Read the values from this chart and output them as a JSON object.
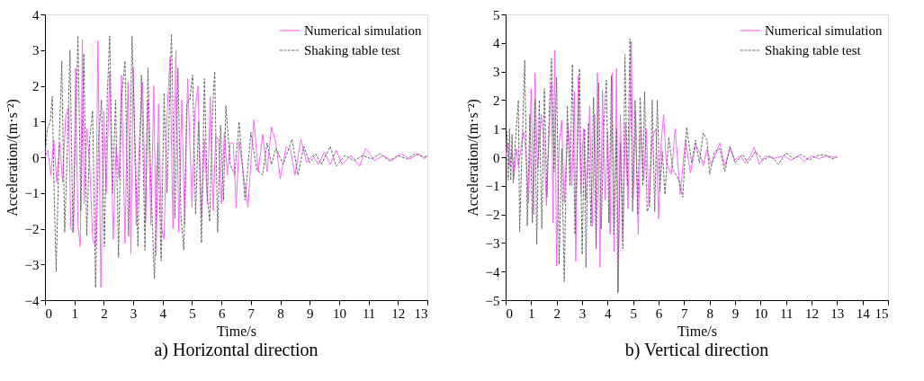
{
  "chart_data": [
    {
      "type": "line",
      "title": "a) Horizontal direction",
      "xlabel": "Time/s",
      "ylabel": "Acceleration/(m·s⁻²)",
      "xlim": [
        0,
        13
      ],
      "xticks": [
        0,
        1,
        2,
        3,
        4,
        5,
        6,
        7,
        8,
        9,
        10,
        11,
        12,
        13
      ],
      "ylim": [
        -4,
        4
      ],
      "yticks": [
        -4,
        -3,
        -2,
        -1,
        0,
        1,
        2,
        3,
        4
      ],
      "grid": false,
      "legend": "top right",
      "marker": "none",
      "series": [
        {
          "name": "Numerical simulation",
          "color": "#ff66ff",
          "line_style": "solid",
          "x": [
            0,
            0.1,
            0.2,
            0.3,
            0.4,
            0.5,
            0.6,
            0.7,
            0.8,
            0.88,
            0.97,
            1.04,
            1.12,
            1.2,
            1.27,
            1.33,
            1.42,
            1.52,
            1.62,
            1.72,
            1.8,
            1.9,
            2.0,
            2.08,
            2.2,
            2.32,
            2.42,
            2.52,
            2.6,
            2.72,
            2.82,
            2.92,
            3.0,
            3.1,
            3.22,
            3.32,
            3.42,
            3.5,
            3.6,
            3.7,
            3.78,
            3.86,
            3.96,
            4.05,
            4.15,
            4.25,
            4.35,
            4.45,
            4.55,
            4.65,
            4.75,
            4.85,
            5.0,
            5.1,
            5.2,
            5.32,
            5.42,
            5.52,
            5.62,
            5.72,
            5.8,
            5.9,
            6.0,
            6.1,
            6.2,
            6.3,
            6.4,
            6.5,
            6.6,
            6.75,
            6.9,
            7.1,
            7.25,
            7.4,
            7.55,
            7.7,
            7.85,
            8.0,
            8.2,
            8.35,
            8.5,
            8.7,
            8.9,
            9.1,
            9.3,
            9.5,
            9.7,
            9.9,
            10.1,
            10.4,
            10.7,
            10.9,
            11.2,
            11.5,
            11.8,
            12.1,
            12.4,
            12.7,
            12.9,
            13.0
          ],
          "values": [
            0,
            0.2,
            -0.5,
            0.5,
            -0.7,
            0.4,
            -0.7,
            1.1,
            1.4,
            -2.0,
            -2.1,
            2.5,
            -1.9,
            -2.5,
            3.3,
            -1.3,
            0.8,
            -0.2,
            -2.3,
            -2.5,
            3.25,
            -3.65,
            1.3,
            -1.0,
            2.4,
            -2.3,
            0.3,
            -0.6,
            2.3,
            -2.4,
            2.1,
            -2.7,
            2.5,
            -1.9,
            0.6,
            2.1,
            -1.8,
            1.6,
            -1.9,
            2.0,
            -2.75,
            1.5,
            -2.0,
            -2.3,
            1.2,
            2.8,
            -2.0,
            3.0,
            -2.1,
            1.6,
            -1.9,
            2.2,
            -1.4,
            1.3,
            2.0,
            -1.7,
            0.5,
            -1.3,
            1.7,
            -1.5,
            0.6,
            0.5,
            -1.3,
            0.7,
            -0.5,
            0.4,
            0.4,
            -1.4,
            0.45,
            -0.5,
            -1.4,
            1.05,
            -0.4,
            0.65,
            -0.4,
            0.85,
            0.4,
            -0.6,
            0.3,
            0.2,
            -0.5,
            0.5,
            -0.15,
            0.05,
            -0.2,
            0.15,
            -0.2,
            0.2,
            -0.2,
            0.05,
            -0.25,
            0.25,
            -0.1,
            0.05,
            -0.1,
            0.1,
            -0.05,
            0.1,
            -0.05,
            0.05
          ]
        },
        {
          "name": "Shaking table test",
          "color": "#666666",
          "line_style": "dashed",
          "x": [
            0,
            0.08,
            0.18,
            0.25,
            0.3,
            0.38,
            0.48,
            0.57,
            0.67,
            0.77,
            0.85,
            0.95,
            1.05,
            1.12,
            1.22,
            1.32,
            1.42,
            1.52,
            1.62,
            1.72,
            1.82,
            1.92,
            2.02,
            2.12,
            2.2,
            2.3,
            2.4,
            2.5,
            2.6,
            2.72,
            2.84,
            2.96,
            3.06,
            3.16,
            3.28,
            3.4,
            3.5,
            3.6,
            3.72,
            3.84,
            3.95,
            4.05,
            4.15,
            4.3,
            4.42,
            4.52,
            4.62,
            4.72,
            4.82,
            4.92,
            5.02,
            5.12,
            5.22,
            5.32,
            5.42,
            5.52,
            5.6,
            5.7,
            5.77,
            5.87,
            5.97,
            6.07,
            6.15,
            6.3,
            6.45,
            6.6,
            6.8,
            7.0,
            7.2,
            7.4,
            7.55,
            7.7,
            7.85,
            8.1,
            8.4,
            8.6,
            8.8,
            9.0,
            9.2,
            9.4,
            9.7,
            9.9,
            10.2,
            10.5,
            10.8,
            11.1,
            11.4,
            11.7,
            12.0,
            12.3,
            12.6,
            12.9,
            13.0
          ],
          "values": [
            0,
            0.8,
            1.0,
            1.7,
            -0.6,
            -3.2,
            0.3,
            2.7,
            -2.1,
            0.5,
            3.0,
            -2.1,
            1.0,
            3.4,
            -1.5,
            2.9,
            -2.2,
            0.5,
            1.3,
            -3.65,
            0.5,
            1.6,
            -2.5,
            1.8,
            3.4,
            -1.0,
            1.6,
            -2.8,
            1.6,
            2.7,
            -2.2,
            3.4,
            0.5,
            -2.5,
            2.3,
            -2.6,
            2.5,
            -0.7,
            -3.4,
            0.4,
            -2.9,
            1.8,
            -1.0,
            3.45,
            -1.7,
            2.5,
            -1.6,
            -2.6,
            1.5,
            1.6,
            2.3,
            -1.6,
            1.0,
            -2.4,
            2.2,
            -1.1,
            -1.8,
            1.3,
            2.4,
            -2.1,
            0.9,
            -1.2,
            1.45,
            -0.2,
            -0.5,
            1.0,
            -1.2,
            0.7,
            -0.35,
            -0.5,
            0.4,
            -0.2,
            0.25,
            -0.2,
            0.5,
            -0.5,
            0.3,
            -0.15,
            0.1,
            -0.2,
            0.3,
            -0.25,
            0.05,
            -0.1,
            0.05,
            -0.05,
            0.1,
            -0.1,
            0.05,
            -0.05,
            0.1,
            0.0,
            0.05
          ]
        }
      ]
    },
    {
      "type": "line",
      "title": "b) Vertical direction",
      "xlabel": "Time/s",
      "ylabel": "Acceleration/(m·s⁻²)",
      "xlim": [
        0,
        15
      ],
      "xticks": [
        0,
        1,
        2,
        3,
        4,
        5,
        6,
        7,
        8,
        9,
        10,
        11,
        12,
        13,
        14,
        15
      ],
      "ylim": [
        -5,
        5
      ],
      "yticks": [
        -5,
        -4,
        -3,
        -2,
        -1,
        0,
        1,
        2,
        3,
        4,
        5
      ],
      "grid": false,
      "legend": "top right",
      "marker": "none",
      "series": [
        {
          "name": "Numerical simulation",
          "color": "#ff66ff",
          "line_style": "solid",
          "x": [
            0,
            0.08,
            0.15,
            0.25,
            0.33,
            0.42,
            0.5,
            0.6,
            0.7,
            0.8,
            0.9,
            1.0,
            1.1,
            1.15,
            1.25,
            1.4,
            1.5,
            1.6,
            1.7,
            1.8,
            1.86,
            1.92,
            2.0,
            2.1,
            2.2,
            2.3,
            2.45,
            2.6,
            2.7,
            2.75,
            2.85,
            2.95,
            3.05,
            3.15,
            3.3,
            3.4,
            3.5,
            3.55,
            3.6,
            3.7,
            3.8,
            3.9,
            4.0,
            4.1,
            4.18,
            4.25,
            4.35,
            4.42,
            4.5,
            4.6,
            4.7,
            4.8,
            4.93,
            5.0,
            5.1,
            5.2,
            5.3,
            5.42,
            5.52,
            5.62,
            5.75,
            5.9,
            6.0,
            6.1,
            6.2,
            6.3,
            6.5,
            6.65,
            6.85,
            7.05,
            7.25,
            7.45,
            7.6,
            7.75,
            7.9,
            8.05,
            8.2,
            8.4,
            8.6,
            8.8,
            9.0,
            9.2,
            9.4,
            9.6,
            9.75,
            9.95,
            10.2,
            10.5,
            10.9,
            11.2,
            11.5,
            11.7,
            12.0,
            12.3,
            12.6,
            12.9,
            13.0
          ],
          "values": [
            0,
            0.5,
            -0.3,
            0.2,
            -0.7,
            0.3,
            -0.3,
            0.3,
            0.9,
            0.2,
            -1.6,
            2.4,
            -2.0,
            2.95,
            -0.4,
            1.5,
            0.6,
            -1.7,
            0.8,
            2.6,
            -2.3,
            3.75,
            -3.8,
            0.5,
            1.3,
            -1.6,
            1.2,
            -1.0,
            2.3,
            -3.65,
            2.85,
            -1.3,
            1.0,
            -1.5,
            1.8,
            -2.4,
            1.5,
            -3.2,
            2.95,
            -3.85,
            2.35,
            -1.5,
            0.9,
            -2.7,
            2.95,
            -3.3,
            3.1,
            -4.7,
            1.5,
            -2.9,
            1.2,
            -1.8,
            4.05,
            -1.5,
            1.6,
            -2.7,
            1.0,
            -0.8,
            1.0,
            -1.7,
            0.7,
            1.0,
            -2.15,
            0.5,
            1.5,
            -0.2,
            -0.6,
            1.0,
            -1.3,
            0.6,
            -0.55,
            0.4,
            0.2,
            -0.3,
            0.3,
            -0.25,
            0.0,
            0.5,
            -0.3,
            0.3,
            -0.1,
            0.05,
            -0.2,
            0.05,
            0.35,
            -0.25,
            0.05,
            -0.05,
            0.05,
            -0.1,
            0.05,
            -0.15,
            0.05,
            -0.05,
            0.05,
            0.0,
            0.05
          ]
        },
        {
          "name": "Shaking table test",
          "color": "#666666",
          "line_style": "dashed",
          "x": [
            0,
            0.05,
            0.1,
            0.15,
            0.2,
            0.25,
            0.3,
            0.38,
            0.5,
            0.55,
            0.65,
            0.75,
            0.85,
            0.95,
            1.05,
            1.15,
            1.22,
            1.32,
            1.42,
            1.52,
            1.62,
            1.72,
            1.8,
            1.9,
            2.0,
            2.1,
            2.2,
            2.3,
            2.42,
            2.52,
            2.62,
            2.72,
            2.82,
            2.9,
            3.0,
            3.1,
            3.15,
            3.25,
            3.35,
            3.45,
            3.55,
            3.65,
            3.75,
            3.85,
            3.95,
            4.05,
            4.15,
            4.25,
            4.35,
            4.4,
            4.5,
            4.6,
            4.68,
            4.78,
            4.88,
            4.98,
            5.08,
            5.18,
            5.28,
            5.38,
            5.45,
            5.55,
            5.65,
            5.75,
            5.85,
            5.95,
            6.05,
            6.15,
            6.25,
            6.4,
            6.55,
            6.8,
            6.95,
            7.1,
            7.3,
            7.45,
            7.6,
            7.75,
            7.9,
            8.0,
            8.2,
            8.4,
            8.6,
            8.8,
            9.0,
            9.3,
            9.5,
            9.8,
            10.1,
            10.4,
            10.7,
            11.0,
            11.3,
            11.6,
            11.9,
            12.2,
            12.5,
            12.8,
            13.0
          ],
          "values": [
            0,
            0.9,
            -0.8,
            1.0,
            -0.8,
            0.8,
            -0.9,
            0.5,
            2.0,
            -2.6,
            0.5,
            3.4,
            -2.4,
            1.5,
            -2.3,
            2.0,
            -3.05,
            2.0,
            -2.5,
            2.4,
            -1.4,
            1.8,
            3.45,
            -0.5,
            2.8,
            -3.75,
            0.3,
            -4.35,
            1.8,
            -1.0,
            3.25,
            -2.7,
            0.5,
            3.1,
            -3.4,
            1.0,
            -3.85,
            1.2,
            -2.4,
            2.1,
            -3.2,
            2.6,
            -2.5,
            1.0,
            2.7,
            -2.3,
            2.85,
            -2.7,
            1.0,
            -4.75,
            0.5,
            -3.2,
            3.6,
            -1.0,
            4.15,
            -1.9,
            2.0,
            -2.0,
            2.1,
            -1.0,
            2.3,
            -1.9,
            -1.7,
            2.0,
            -1.9,
            2.0,
            -1.2,
            0.2,
            -1.3,
            0.7,
            -0.4,
            -0.8,
            -1.4,
            1.05,
            -0.2,
            0.6,
            -0.2,
            0.85,
            0.6,
            -0.6,
            0.2,
            0.3,
            -0.5,
            0.4,
            -0.2,
            0.1,
            -0.2,
            0.2,
            -0.1,
            0.05,
            -0.25,
            0.15,
            -0.05,
            0.1,
            -0.1,
            0.05,
            0.1,
            -0.05,
            0.0
          ]
        }
      ]
    }
  ]
}
